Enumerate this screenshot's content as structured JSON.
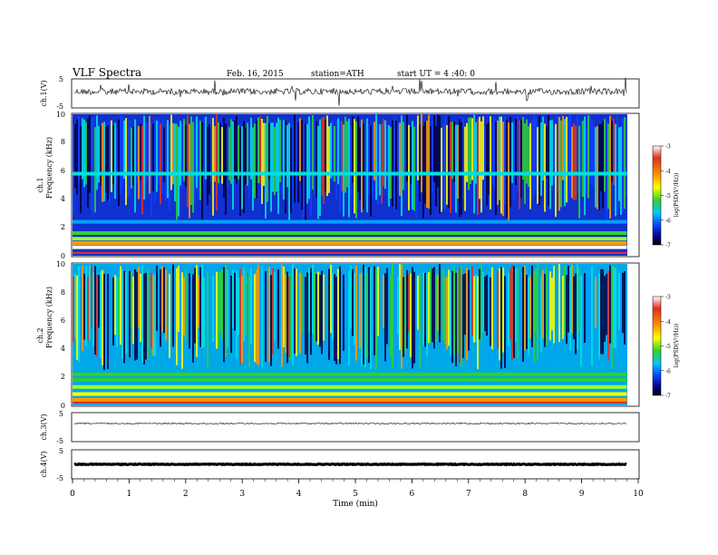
{
  "header": {
    "title": "VLF  Spectra",
    "date": "Feb. 16, 2015",
    "station": "station=ATH",
    "start": "start  UT  =   4  :40: 0"
  },
  "colorbar": {
    "label": "log(PSD(V²/Hz))",
    "ticks": [
      "-3",
      "-4",
      "-5",
      "-6",
      "-7"
    ],
    "colors": [
      "#ffffff",
      "#e03020",
      "#ff9900",
      "#ffff00",
      "#30d030",
      "#00c8ff",
      "#1040ff",
      "#000080",
      "#000000"
    ]
  },
  "chart_data": [
    {
      "type": "line",
      "panel": "ch1-waveform",
      "ylabel": "ch.1(V)",
      "yticks": [
        "5",
        "-5"
      ],
      "ylim": [
        -5,
        5
      ],
      "x": [
        0,
        9.8
      ],
      "xlim": [
        0,
        10
      ],
      "description_values": {
        "mean": 0,
        "amplitude_approx": 1
      }
    },
    {
      "type": "heatmap",
      "panel": "ch1-spectrogram",
      "ylabel_top": "ch.1",
      "ylabel": "Frequency  (kHz)",
      "yticks": [
        "0",
        "2",
        "4",
        "6",
        "8",
        "10"
      ],
      "ylim": [
        0,
        10
      ],
      "xlim": [
        0,
        10
      ],
      "zlim": [
        -7,
        -3
      ],
      "bands_khz": [
        {
          "f": 0.6,
          "logpsd": -3.2
        },
        {
          "f": 0.9,
          "logpsd": -4.0
        },
        {
          "f": 1.2,
          "logpsd": -4.6
        },
        {
          "f": 1.6,
          "logpsd": -5.0
        },
        {
          "f": 2.4,
          "logpsd": -5.8
        },
        {
          "f": 5.8,
          "logpsd": -5.6
        }
      ]
    },
    {
      "type": "heatmap",
      "panel": "ch2-spectrogram",
      "ylabel_top": "ch.2",
      "ylabel": "Frequency  (kHz)",
      "yticks": [
        "0",
        "2",
        "4",
        "6",
        "8",
        "10"
      ],
      "ylim": [
        0,
        10
      ],
      "xlim": [
        0,
        10
      ],
      "zlim": [
        -7,
        -3
      ],
      "bands_khz": [
        {
          "f": 0.4,
          "logpsd": -3.8
        },
        {
          "f": 0.8,
          "logpsd": -4.2
        },
        {
          "f": 1.3,
          "logpsd": -4.5
        },
        {
          "f": 1.8,
          "logpsd": -4.9
        },
        {
          "f": 2.2,
          "logpsd": -5.1
        }
      ]
    },
    {
      "type": "line",
      "panel": "ch3-waveform",
      "ylabel": "ch.3(V)",
      "yticks": [
        "5",
        "-5"
      ],
      "ylim": [
        -5,
        5
      ],
      "xlim": [
        0,
        10
      ]
    },
    {
      "type": "line",
      "panel": "ch4-waveform",
      "ylabel": "ch.4(V)",
      "yticks": [
        "5",
        "-5"
      ],
      "ylim": [
        -5,
        5
      ],
      "xlim": [
        0,
        10
      ]
    }
  ],
  "xaxis": {
    "label": "Time  (min)",
    "ticks": [
      "0",
      "1",
      "2",
      "3",
      "4",
      "5",
      "6",
      "7",
      "8",
      "9",
      "10"
    ]
  }
}
